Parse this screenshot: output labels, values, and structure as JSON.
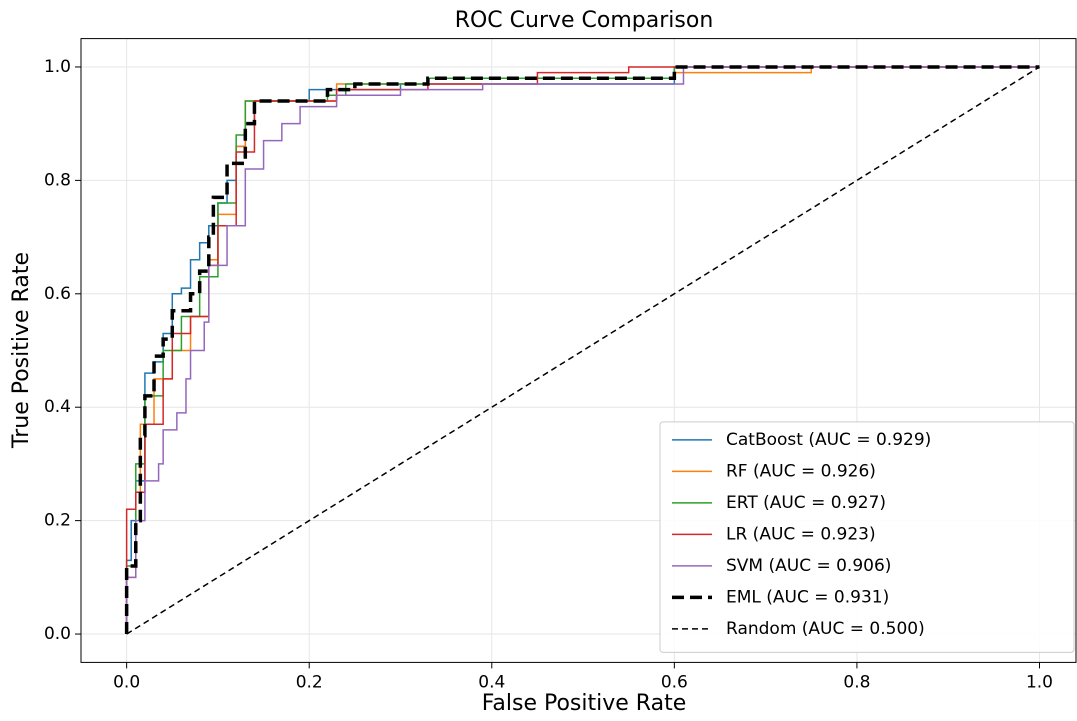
{
  "chart_data": {
    "type": "line",
    "title": "ROC Curve Comparison",
    "x_label": "False Positive Rate",
    "y_label": "True Positive Rate",
    "xlim": [
      -0.05,
      1.04
    ],
    "ylim": [
      -0.05,
      1.05
    ],
    "xticks": [
      {
        "value": 0,
        "label": "0.0"
      },
      0.2,
      0.4,
      0.6,
      0.8,
      {
        "value": 1,
        "label": "1.0"
      }
    ],
    "yticks": [
      {
        "value": 0,
        "label": "0.0"
      },
      0.2,
      0.4,
      0.6,
      0.8,
      {
        "value": 1,
        "label": "1.0"
      }
    ],
    "grid": true,
    "legend": "lower right",
    "series": [
      {
        "name": "CatBoost (AUC = 0.929)",
        "color": "#1f77b4",
        "linestyle": "solid",
        "linewidth": 1.5,
        "x": [
          0,
          0,
          0.005,
          0.005,
          0.01,
          0.01,
          0.02,
          0.02,
          0.03,
          0.03,
          0.04,
          0.04,
          0.05,
          0.05,
          0.06,
          0.06,
          0.07,
          0.07,
          0.08,
          0.08,
          0.09,
          0.09,
          0.1,
          0.1,
          0.11,
          0.11,
          0.12,
          0.12,
          0.13,
          0.13,
          0.14,
          0.14,
          0.2,
          0.2,
          0.3,
          0.3,
          0.6,
          0.6,
          1
        ],
        "values": [
          0,
          0.13,
          0.13,
          0.2,
          0.2,
          0.27,
          0.27,
          0.46,
          0.46,
          0.48,
          0.48,
          0.53,
          0.53,
          0.6,
          0.6,
          0.61,
          0.61,
          0.66,
          0.66,
          0.69,
          0.69,
          0.72,
          0.72,
          0.76,
          0.76,
          0.8,
          0.8,
          0.86,
          0.86,
          0.9,
          0.9,
          0.94,
          0.94,
          0.96,
          0.96,
          0.97,
          0.97,
          1,
          1
        ]
      },
      {
        "name": "RF (AUC = 0.926)",
        "color": "#ff7f0e",
        "linestyle": "solid",
        "linewidth": 1.5,
        "x": [
          0,
          0,
          0.01,
          0.01,
          0.015,
          0.015,
          0.03,
          0.03,
          0.05,
          0.05,
          0.07,
          0.07,
          0.09,
          0.09,
          0.1,
          0.1,
          0.12,
          0.12,
          0.13,
          0.13,
          0.23,
          0.23,
          0.33,
          0.33,
          0.6,
          0.6,
          0.75,
          0.75,
          1
        ],
        "values": [
          0,
          0.1,
          0.1,
          0.25,
          0.25,
          0.37,
          0.37,
          0.45,
          0.45,
          0.5,
          0.5,
          0.56,
          0.56,
          0.66,
          0.66,
          0.74,
          0.74,
          0.86,
          0.86,
          0.94,
          0.94,
          0.97,
          0.97,
          0.98,
          0.98,
          0.99,
          0.99,
          1,
          1
        ]
      },
      {
        "name": "ERT (AUC = 0.927)",
        "color": "#2ca02c",
        "linestyle": "solid",
        "linewidth": 1.5,
        "x": [
          0,
          0,
          0.01,
          0.01,
          0.02,
          0.02,
          0.04,
          0.04,
          0.06,
          0.06,
          0.08,
          0.08,
          0.1,
          0.1,
          0.12,
          0.12,
          0.13,
          0.13,
          0.22,
          0.22,
          0.24,
          0.24,
          0.33,
          0.33,
          0.6,
          0.6,
          1
        ],
        "values": [
          0,
          0.12,
          0.12,
          0.3,
          0.3,
          0.42,
          0.42,
          0.5,
          0.5,
          0.56,
          0.56,
          0.63,
          0.63,
          0.76,
          0.76,
          0.88,
          0.88,
          0.94,
          0.94,
          0.95,
          0.95,
          0.97,
          0.97,
          0.98,
          0.98,
          1,
          1
        ]
      },
      {
        "name": "LR (AUC = 0.923)",
        "color": "#d62728",
        "linestyle": "solid",
        "linewidth": 1.5,
        "x": [
          0,
          0,
          0.01,
          0.01,
          0.02,
          0.02,
          0.04,
          0.04,
          0.05,
          0.05,
          0.07,
          0.07,
          0.09,
          0.09,
          0.1,
          0.1,
          0.12,
          0.12,
          0.14,
          0.14,
          0.23,
          0.23,
          0.33,
          0.33,
          0.45,
          0.45,
          0.55,
          0.55,
          1
        ],
        "values": [
          0,
          0.22,
          0.22,
          0.25,
          0.25,
          0.37,
          0.37,
          0.45,
          0.45,
          0.53,
          0.53,
          0.56,
          0.56,
          0.65,
          0.65,
          0.72,
          0.72,
          0.85,
          0.85,
          0.94,
          0.94,
          0.96,
          0.96,
          0.97,
          0.97,
          0.99,
          0.99,
          1,
          1
        ]
      },
      {
        "name": "SVM (AUC = 0.906)",
        "color": "#9467bd",
        "linestyle": "solid",
        "linewidth": 1.5,
        "x": [
          0,
          0,
          0.01,
          0.01,
          0.02,
          0.02,
          0.035,
          0.035,
          0.04,
          0.04,
          0.055,
          0.055,
          0.065,
          0.065,
          0.07,
          0.07,
          0.085,
          0.085,
          0.09,
          0.09,
          0.11,
          0.11,
          0.13,
          0.13,
          0.15,
          0.15,
          0.17,
          0.17,
          0.19,
          0.19,
          0.23,
          0.23,
          0.3,
          0.3,
          0.39,
          0.39,
          0.61,
          0.61,
          1
        ],
        "values": [
          0,
          0.1,
          0.1,
          0.2,
          0.2,
          0.27,
          0.27,
          0.3,
          0.3,
          0.36,
          0.36,
          0.39,
          0.39,
          0.45,
          0.45,
          0.5,
          0.5,
          0.55,
          0.55,
          0.65,
          0.65,
          0.72,
          0.72,
          0.82,
          0.82,
          0.87,
          0.87,
          0.9,
          0.9,
          0.93,
          0.93,
          0.95,
          0.95,
          0.96,
          0.96,
          0.97,
          0.97,
          1,
          1
        ]
      },
      {
        "name": "EML (AUC = 0.931)",
        "color": "#000000",
        "linestyle": "dashed",
        "linewidth": 3.5,
        "x": [
          0,
          0,
          0.01,
          0.01,
          0.015,
          0.015,
          0.02,
          0.02,
          0.03,
          0.03,
          0.04,
          0.04,
          0.05,
          0.05,
          0.07,
          0.07,
          0.08,
          0.08,
          0.09,
          0.09,
          0.095,
          0.095,
          0.11,
          0.11,
          0.13,
          0.13,
          0.14,
          0.14,
          0.22,
          0.22,
          0.25,
          0.25,
          0.33,
          0.33,
          0.6,
          0.6,
          1
        ],
        "values": [
          0,
          0.12,
          0.12,
          0.2,
          0.2,
          0.35,
          0.35,
          0.42,
          0.42,
          0.49,
          0.49,
          0.52,
          0.52,
          0.57,
          0.57,
          0.6,
          0.6,
          0.64,
          0.64,
          0.7,
          0.7,
          0.77,
          0.77,
          0.83,
          0.83,
          0.9,
          0.9,
          0.94,
          0.94,
          0.96,
          0.96,
          0.97,
          0.97,
          0.98,
          0.98,
          1,
          1
        ]
      },
      {
        "name": "Random (AUC = 0.500)",
        "color": "#000000",
        "linestyle": "dashed",
        "linewidth": 1.5,
        "x": [
          0,
          1
        ],
        "values": [
          0,
          1
        ]
      }
    ]
  }
}
